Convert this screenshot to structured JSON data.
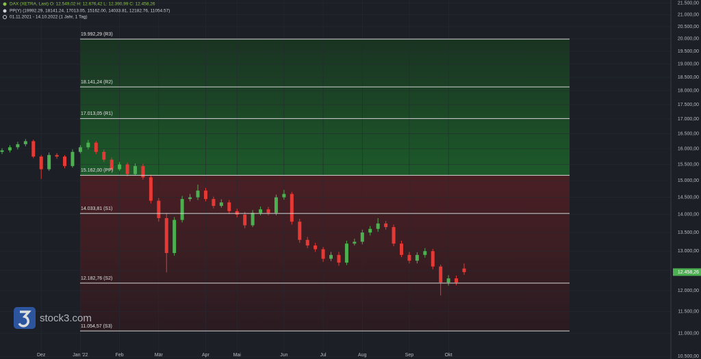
{
  "chart_data": {
    "type": "candlestick",
    "header": {
      "line1": "DAX (XETRA, Last)  O: 12.549,02  H: 12.676,42  L: 12.390,99  C: 12.458,26",
      "line2": "PP(Y)  (19992.29, 18141.24, 17013.05, 15162.00, 14033.81, 12182.76, 11054.57)",
      "line3": "01.11.2021 - 14.10.2022  (1 Jahr, 1 Tag)"
    },
    "watermark": "stock3.com",
    "log_scale": true,
    "grid": true,
    "up_color": "#4caf50",
    "down_color": "#e53935",
    "categories": [
      null,
      null,
      null,
      null,
      null,
      "Dez",
      null,
      null,
      null,
      null,
      "Jan '22",
      null,
      null,
      null,
      null,
      "Feb",
      null,
      null,
      null,
      null,
      "Mär",
      null,
      null,
      null,
      null,
      null,
      "Apr",
      null,
      null,
      null,
      "Mai",
      null,
      null,
      null,
      null,
      null,
      "Jun",
      null,
      null,
      null,
      null,
      "Jul",
      null,
      null,
      null,
      null,
      "Aug",
      null,
      null,
      null,
      null,
      null,
      "Sep",
      null,
      null,
      null,
      null,
      "Okt",
      null,
      null
    ],
    "open": [
      15900,
      15950,
      16050,
      16150,
      16250,
      15750,
      15350,
      15800,
      15750,
      15450,
      15900,
      16050,
      16200,
      15900,
      15650,
      15350,
      15500,
      15200,
      15450,
      15100,
      14400,
      13900,
      12950,
      13850,
      14450,
      14500,
      14700,
      14450,
      14250,
      14350,
      14100,
      14000,
      13700,
      14050,
      14150,
      14050,
      14500,
      14600,
      13800,
      13300,
      13150,
      13050,
      12800,
      12900,
      12700,
      13200,
      13250,
      13500,
      13600,
      13750,
      13650,
      13200,
      12900,
      12750,
      12900,
      13000,
      12600,
      12200,
      12300,
      12549.02
    ],
    "high": [
      16020,
      16120,
      16230,
      16320,
      16300,
      15800,
      15880,
      15860,
      15800,
      15980,
      16120,
      16290,
      16250,
      15980,
      15720,
      15580,
      15560,
      15530,
      15520,
      15180,
      14480,
      14050,
      13930,
      14540,
      14600,
      14880,
      14780,
      14520,
      14440,
      14420,
      14170,
      14080,
      14130,
      14230,
      14220,
      14580,
      14720,
      14660,
      13880,
      13380,
      13220,
      13110,
      12980,
      12980,
      13280,
      13330,
      13580,
      13680,
      13900,
      13820,
      13720,
      13280,
      12980,
      12970,
      13080,
      13060,
      12650,
      12380,
      12370,
      12676.42
    ],
    "low": [
      15830,
      15880,
      15980,
      16080,
      15700,
      15050,
      15300,
      15680,
      15380,
      15400,
      15850,
      15980,
      15830,
      15580,
      15280,
      15300,
      15130,
      15150,
      15030,
      14320,
      13800,
      12450,
      12880,
      13780,
      14380,
      14420,
      14380,
      14180,
      14200,
      14020,
      13920,
      13620,
      13650,
      13980,
      13980,
      13980,
      14430,
      13720,
      13220,
      13080,
      12980,
      12720,
      12740,
      12620,
      12640,
      13150,
      13180,
      13420,
      13520,
      13580,
      13130,
      12840,
      12680,
      12680,
      12830,
      12530,
      11880,
      12120,
      12130,
      12390.99
    ],
    "close": [
      15950,
      16050,
      16150,
      16250,
      15750,
      15350,
      15800,
      15750,
      15450,
      15900,
      16050,
      16200,
      15900,
      15650,
      15350,
      15500,
      15200,
      15450,
      15100,
      14400,
      13900,
      12950,
      13850,
      14450,
      14500,
      14700,
      14450,
      14250,
      14350,
      14100,
      14000,
      13700,
      14050,
      14150,
      14050,
      14500,
      14600,
      13800,
      13300,
      13150,
      13050,
      12800,
      12900,
      12700,
      13200,
      13250,
      13500,
      13600,
      13750,
      13650,
      13200,
      12900,
      12750,
      12900,
      13000,
      12600,
      12200,
      12300,
      12200,
      12458.26
    ],
    "pivots": [
      {
        "value": 19992.29,
        "label": "19.992,29 (R3)"
      },
      {
        "value": 18141.24,
        "label": "18.141,24 (R2)"
      },
      {
        "value": 17013.05,
        "label": "17.013,05 (R1)"
      },
      {
        "value": 15162.0,
        "label": "15.162,00 (PP)"
      },
      {
        "value": 14033.81,
        "label": "14.033,81 (S1)"
      },
      {
        "value": 12182.76,
        "label": "12.182,76 (S2)"
      },
      {
        "value": 11054.57,
        "label": "11.054,57 (S3)"
      }
    ],
    "last_price": {
      "value": 12458.26,
      "label": "12.458,26"
    },
    "ylim": [
      10444,
      21641
    ],
    "yticks": [
      {
        "value": 10500,
        "label": "10.500,00"
      },
      {
        "value": 11000,
        "label": "11.000,00"
      },
      {
        "value": 11500,
        "label": "11.500,00"
      },
      {
        "value": 12000,
        "label": "12.000,00"
      },
      {
        "value": 12500,
        "label": "12.500,00"
      },
      {
        "value": 13000,
        "label": "13.000,00"
      },
      {
        "value": 13500,
        "label": "13.500,00"
      },
      {
        "value": 14000,
        "label": "14.000,00"
      },
      {
        "value": 14500,
        "label": "14.500,00"
      },
      {
        "value": 15000,
        "label": "15.000,00"
      },
      {
        "value": 15500,
        "label": "15.500,00"
      },
      {
        "value": 16000,
        "label": "16.000,00"
      },
      {
        "value": 16500,
        "label": "16.500,00"
      },
      {
        "value": 17000,
        "label": "17.000,00"
      },
      {
        "value": 17500,
        "label": "17.500,00"
      },
      {
        "value": 18000,
        "label": "18.000,00"
      },
      {
        "value": 18500,
        "label": "18.500,00"
      },
      {
        "value": 19000,
        "label": "19.000,00"
      },
      {
        "value": 19500,
        "label": "19.500,00"
      },
      {
        "value": 20000,
        "label": "20.000,00"
      },
      {
        "value": 20500,
        "label": "20.500,00"
      },
      {
        "value": 21000,
        "label": "21.000,00"
      },
      {
        "value": 21500,
        "label": "21.500,00"
      }
    ]
  }
}
